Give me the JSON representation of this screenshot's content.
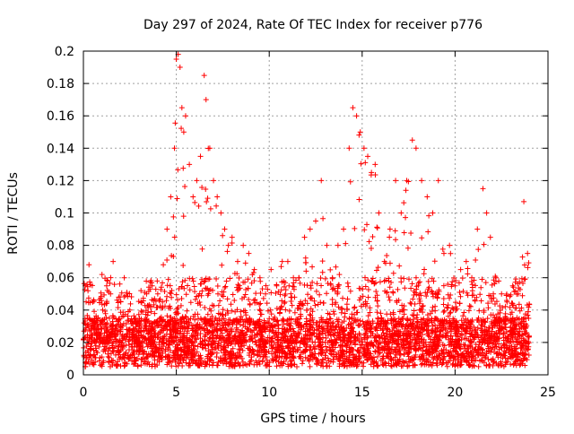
{
  "chart_data": {
    "type": "scatter",
    "title": "Day 297 of 2024, Rate Of TEC Index for receiver p776",
    "xlabel": "GPS time / hours",
    "ylabel": "ROTI / TECUs",
    "xlim": [
      0,
      25
    ],
    "ylim": [
      0,
      0.2
    ],
    "xticks": [
      0,
      5,
      10,
      15,
      20,
      25
    ],
    "yticks": [
      0,
      0.02,
      0.04,
      0.06,
      0.08,
      0.1,
      0.12,
      0.14,
      0.16,
      0.18,
      0.2
    ],
    "grid": true,
    "marker": "plus",
    "color": "#ff0000",
    "series": [
      {
        "x": [
          0.1,
          0.3,
          0.5,
          0.8,
          1.0,
          1.3,
          1.6,
          1.9,
          2.2,
          2.5,
          2.8,
          3.1,
          3.4,
          3.7,
          4.0,
          4.3,
          4.5,
          4.7,
          4.9,
          5.0,
          5.1,
          5.2,
          5.3,
          5.4,
          5.5,
          5.7,
          5.9,
          6.1,
          6.3,
          6.5,
          6.6,
          6.8,
          7.0,
          7.2,
          7.4,
          7.6,
          7.8,
          8.0,
          8.3,
          8.6,
          8.9,
          9.2,
          9.5,
          9.8,
          10.1,
          10.4,
          10.7,
          11.0,
          11.3,
          11.6,
          11.9,
          12.2,
          12.5,
          12.8,
          13.1,
          13.4,
          13.7,
          14.0,
          14.3,
          14.5,
          14.7,
          14.9,
          15.1,
          15.3,
          15.5,
          15.7,
          15.9,
          16.2,
          16.5,
          16.8,
          17.1,
          17.4,
          17.7,
          17.9,
          18.2,
          18.5,
          18.8,
          19.1,
          19.4,
          19.7,
          20.0,
          20.3,
          20.6,
          20.9,
          21.2,
          21.5,
          21.7,
          21.9,
          22.2,
          22.5,
          22.8,
          23.1,
          23.4,
          23.7,
          23.9
        ],
        "y": [
          0.055,
          0.068,
          0.045,
          0.03,
          0.062,
          0.058,
          0.07,
          0.048,
          0.06,
          0.04,
          0.035,
          0.045,
          0.05,
          0.055,
          0.05,
          0.068,
          0.09,
          0.11,
          0.14,
          0.195,
          0.198,
          0.19,
          0.165,
          0.15,
          0.16,
          0.13,
          0.11,
          0.12,
          0.135,
          0.185,
          0.17,
          0.14,
          0.12,
          0.11,
          0.1,
          0.09,
          0.08,
          0.085,
          0.07,
          0.08,
          0.075,
          0.065,
          0.06,
          0.05,
          0.065,
          0.055,
          0.07,
          0.07,
          0.06,
          0.06,
          0.085,
          0.09,
          0.095,
          0.12,
          0.08,
          0.06,
          0.08,
          0.09,
          0.14,
          0.165,
          0.16,
          0.15,
          0.14,
          0.135,
          0.125,
          0.13,
          0.1,
          0.07,
          0.09,
          0.12,
          0.1,
          0.12,
          0.145,
          0.14,
          0.12,
          0.11,
          0.1,
          0.12,
          0.075,
          0.08,
          0.055,
          0.065,
          0.07,
          0.06,
          0.09,
          0.115,
          0.1,
          0.085,
          0.06,
          0.05,
          0.045,
          0.055,
          0.05,
          0.107,
          0.075
        ]
      }
    ]
  }
}
